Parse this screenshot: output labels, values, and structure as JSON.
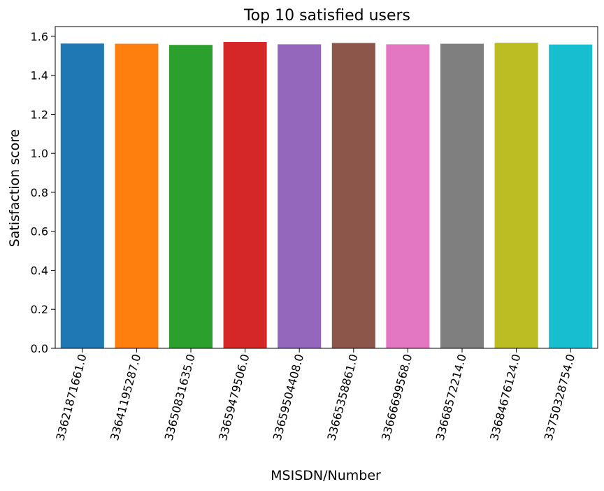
{
  "chart_data": {
    "type": "bar",
    "title": "Top 10 satisfied users",
    "xlabel": "MSISDN/Number",
    "ylabel": "Satisfaction score",
    "ylim": [
      0,
      1.65
    ],
    "yticks": [
      "0.0",
      "0.2",
      "0.4",
      "0.6",
      "0.8",
      "1.0",
      "1.2",
      "1.4",
      "1.6"
    ],
    "categories": [
      "33621871661.0",
      "33641195287.0",
      "33650831635.0",
      "33659479506.0",
      "33659504408.0",
      "33665358861.0",
      "33666699568.0",
      "33668572214.0",
      "33684676124.0",
      "33750328754.0"
    ],
    "values": [
      1.563,
      1.562,
      1.556,
      1.571,
      1.559,
      1.566,
      1.559,
      1.562,
      1.567,
      1.558
    ],
    "colors": [
      "#1f77b4",
      "#ff7f0e",
      "#2ca02c",
      "#d62728",
      "#9467bd",
      "#8c564b",
      "#e377c2",
      "#7f7f7f",
      "#bcbd22",
      "#17becf"
    ],
    "grid": false,
    "legend": "none"
  }
}
